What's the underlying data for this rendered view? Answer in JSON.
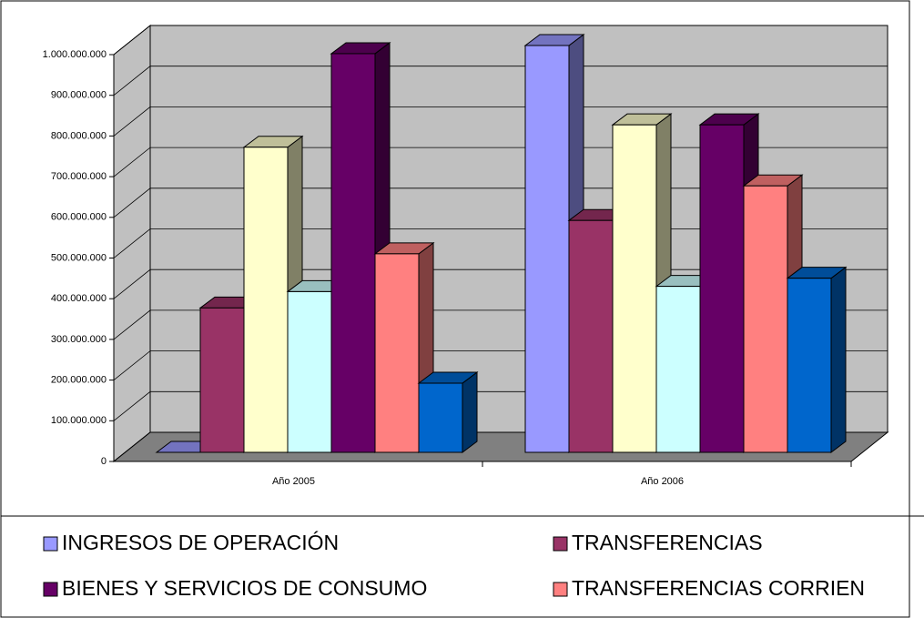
{
  "chart_data": {
    "type": "bar3d",
    "categories": [
      "Año 2005",
      "Año 2006"
    ],
    "series": [
      {
        "name": "INGRESOS DE OPERACIÓN",
        "color": "#9999ff",
        "values": [
          0,
          1000000000
        ]
      },
      {
        "name": "TRANSFERENCIAS",
        "color": "#993366",
        "values": [
          355000000,
          570000000
        ]
      },
      {
        "name": null,
        "color": "#ffffcc",
        "values": [
          750000000,
          805000000
        ]
      },
      {
        "name": null,
        "color": "#ccffff",
        "values": [
          395000000,
          408000000
        ]
      },
      {
        "name": "BIENES Y SERVICIOS DE CONSUMO",
        "color": "#660066",
        "values": [
          980000000,
          805000000
        ]
      },
      {
        "name": "TRANSFERENCIAS CORRIEN",
        "color": "#ff8080",
        "values": [
          488000000,
          655000000
        ]
      },
      {
        "name": null,
        "color": "#0066cc",
        "values": [
          170000000,
          428000000
        ]
      }
    ],
    "ylim": [
      0,
      1000000000
    ],
    "yticks": [
      0,
      {
        "value": 100000000,
        "label": "100.000.000"
      },
      {
        "value": 200000000,
        "label": "200.000.000"
      },
      {
        "value": 300000000,
        "label": "300.000.000"
      },
      {
        "value": 400000000,
        "label": "400.000.000"
      },
      {
        "value": 500000000,
        "label": "500.000.000"
      },
      {
        "value": 600000000,
        "label": "600.000.000"
      },
      {
        "value": 700000000,
        "label": "700.000.000"
      },
      {
        "value": 800000000,
        "label": "800.000.000"
      },
      {
        "value": 900000000,
        "label": "900.000.000"
      },
      {
        "value": 1000000000,
        "label": "1.000.000.000"
      }
    ],
    "grid": true
  }
}
